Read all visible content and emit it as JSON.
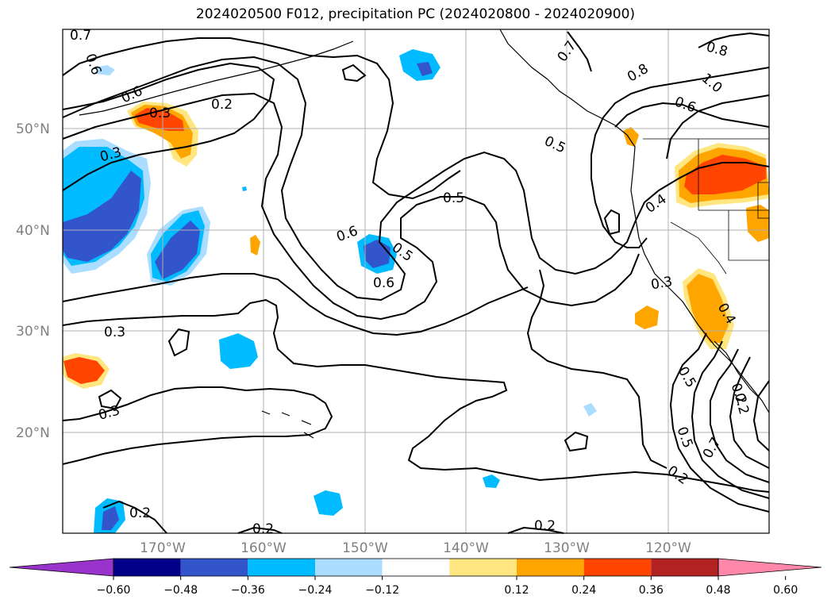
{
  "title": "2024020500 F012, precipitation PC (2024020800 - 2024020900)",
  "lat_labels": [
    "50°N",
    "40°N",
    "30°N",
    "20°N"
  ],
  "lon_labels": [
    "170°W",
    "160°W",
    "150°W",
    "140°W",
    "130°W",
    "120°W"
  ],
  "colorbar": {
    "ticks": [
      "−0.60",
      "−0.48",
      "−0.36",
      "−0.24",
      "−0.12",
      "0.12",
      "0.24",
      "0.36",
      "0.48",
      "0.60"
    ],
    "colors": [
      "#9933cc",
      "#000088",
      "#3355cc",
      "#00bbff",
      "#aaddff",
      "#ffffff",
      "#ffe680",
      "#ffa500",
      "#ff4500",
      "#b22222",
      "#ff88aa"
    ]
  },
  "contour_labels": [
    {
      "text": "0.7"
    },
    {
      "text": "0.6"
    },
    {
      "text": "0.6"
    },
    {
      "text": "0.3"
    },
    {
      "text": "0.2"
    },
    {
      "text": "0.3"
    },
    {
      "text": "0.5"
    },
    {
      "text": "0.6"
    },
    {
      "text": "0.5"
    },
    {
      "text": "0.6"
    },
    {
      "text": "0.3"
    },
    {
      "text": "0.3"
    },
    {
      "text": "0.2"
    },
    {
      "text": "0.2"
    },
    {
      "text": "0.2"
    },
    {
      "text": "0.7"
    },
    {
      "text": "0.8"
    },
    {
      "text": "0.8"
    },
    {
      "text": "1.0"
    },
    {
      "text": "0.6"
    },
    {
      "text": "0.5"
    },
    {
      "text": "0.4"
    },
    {
      "text": "0.3"
    },
    {
      "text": "0.4"
    },
    {
      "text": "0.5"
    },
    {
      "text": "0.2"
    },
    {
      "text": "0.5"
    },
    {
      "text": "0.2"
    },
    {
      "text": "0.7"
    },
    {
      "text": "0.2"
    }
  ],
  "colors": {
    "land_outline": "#000000",
    "grid": "#b0b0b0",
    "contour": "#000000"
  }
}
